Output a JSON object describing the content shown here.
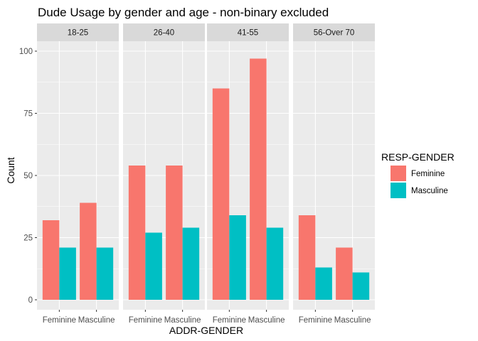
{
  "chart_data": {
    "type": "bar",
    "title": "Dude Usage by gender and age - non-binary excluded",
    "xlabel": "ADDR-GENDER",
    "ylabel": "Count",
    "ylim": [
      -4,
      104
    ],
    "yticks": [
      "0",
      "25",
      "50",
      "75",
      "100"
    ],
    "facets": [
      "18-25",
      "26-40",
      "41-55",
      "56-Over 70"
    ],
    "categories": [
      "Feminine",
      "Masculine"
    ],
    "legend": {
      "title": "RESP-GENDER",
      "position": "right",
      "entries": [
        "Feminine",
        "Masculine"
      ]
    },
    "colors": {
      "Feminine": "#F8766D",
      "Masculine": "#00BFC4"
    },
    "grid": true,
    "series": [
      {
        "name": "Feminine",
        "facet_values": [
          [
            32,
            39
          ],
          [
            54,
            54
          ],
          [
            85,
            97
          ],
          [
            34,
            21
          ]
        ]
      },
      {
        "name": "Masculine",
        "facet_values": [
          [
            21,
            21
          ],
          [
            27,
            29
          ],
          [
            34,
            29
          ],
          [
            13,
            11
          ]
        ]
      }
    ]
  }
}
